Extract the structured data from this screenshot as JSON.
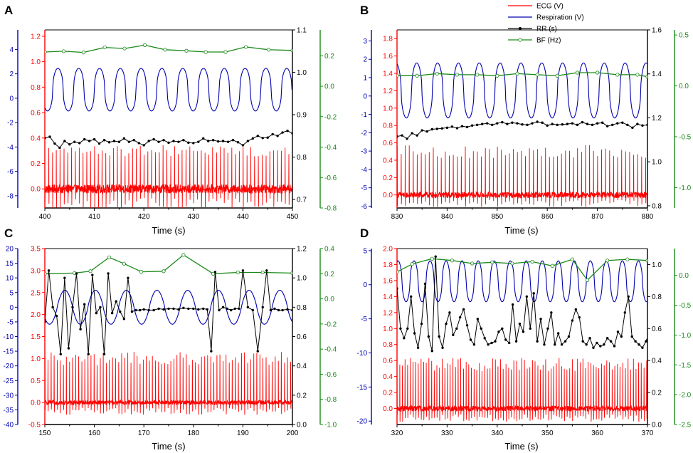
{
  "colors": {
    "ecg": "#ff0000",
    "respiration": "#0000b0",
    "rr": "#000000",
    "bf": "#1a8a1a",
    "axis_black": "#000000"
  },
  "legend": {
    "entries": [
      {
        "label": "ECG (V)",
        "series": "ecg"
      },
      {
        "label": "Respiration (V)",
        "series": "respiration"
      },
      {
        "label": "RR (s)",
        "series": "rr"
      },
      {
        "label": "BF (Hz)",
        "series": "bf"
      }
    ]
  },
  "chart_data": [
    {
      "panel": "A",
      "type": "line",
      "xlabel": "Time (s)",
      "x_range": [
        400,
        450
      ],
      "x_ticks": [
        400,
        410,
        420,
        430,
        440,
        450
      ],
      "axes": {
        "respiration": {
          "range": [
            -9,
            5.6
          ],
          "ticks": [
            -8,
            -6,
            -4,
            -2,
            0,
            2,
            4
          ]
        },
        "ecg": {
          "range": [
            -0.15,
            1.25
          ],
          "ticks": [
            "0.0",
            "0.2",
            "0.4",
            "0.6",
            "0.8",
            "1.0",
            "1.2"
          ]
        },
        "rr": {
          "range": [
            0.68,
            1.1
          ],
          "ticks": [
            "0.7",
            "0.8",
            "0.9",
            "1.0",
            "1.1"
          ]
        },
        "bf": {
          "range": [
            -0.8,
            0.37
          ],
          "ticks": [
            "-0.8",
            "-0.6",
            "-0.4",
            "-0.2",
            "0.0",
            "0.2"
          ]
        }
      },
      "respiration": {
        "period": 4.2,
        "phase": 401.6,
        "center": 0.7,
        "amp": 1.75,
        "sharp": 2.2
      },
      "ecg": {
        "period": 0.77,
        "peak_level": 0.3,
        "base": 0.0,
        "noise": 0.07,
        "s_depth": -0.12
      },
      "rr": {
        "x": [
          400,
          401,
          402,
          403,
          404,
          405,
          406,
          407,
          408,
          409,
          410,
          411,
          412,
          413,
          414,
          415,
          416,
          417,
          418,
          419,
          420,
          421,
          422,
          423,
          424,
          425,
          426,
          427,
          428,
          429,
          430,
          431,
          432,
          433,
          434,
          435,
          436,
          437,
          438,
          439,
          440,
          441,
          442,
          443,
          444,
          445,
          446,
          447,
          448,
          449,
          450
        ],
        "y": [
          0.845,
          0.848,
          0.832,
          0.822,
          0.838,
          0.83,
          0.836,
          0.833,
          0.842,
          0.838,
          0.842,
          0.832,
          0.84,
          0.835,
          0.838,
          0.836,
          0.844,
          0.836,
          0.84,
          0.833,
          0.828,
          0.838,
          0.842,
          0.836,
          0.84,
          0.834,
          0.838,
          0.836,
          0.84,
          0.834,
          0.833,
          0.836,
          0.844,
          0.838,
          0.84,
          0.837,
          0.838,
          0.836,
          0.84,
          0.835,
          0.828,
          0.838,
          0.844,
          0.85,
          0.845,
          0.846,
          0.854,
          0.85,
          0.858,
          0.862,
          0.856
        ]
      },
      "bf": {
        "x": [
          400,
          403.8,
          407.8,
          412.1,
          416.1,
          420.2,
          424.3,
          428.6,
          432.5,
          436.5,
          440.6,
          445.2,
          450
        ],
        "y": [
          0.225,
          0.23,
          0.222,
          0.255,
          0.248,
          0.27,
          0.24,
          0.233,
          0.225,
          0.225,
          0.258,
          0.24,
          0.235
        ]
      }
    },
    {
      "panel": "B",
      "type": "line",
      "xlabel": "Time (s)",
      "x_range": [
        830,
        880
      ],
      "x_ticks": [
        830,
        840,
        850,
        860,
        870,
        880
      ],
      "axes": {
        "respiration": {
          "range": [
            -6.1,
            3.6
          ],
          "ticks": [
            -6,
            -5,
            -4,
            -3,
            -2,
            -1,
            0,
            1,
            2,
            3
          ]
        },
        "ecg": {
          "range": [
            -0.15,
            1.9
          ],
          "ticks": [
            "0.0",
            "0.2",
            "0.4",
            "0.6",
            "0.8",
            "1.0",
            "1.2",
            "1.4",
            "1.6",
            "1.8"
          ]
        },
        "rr": {
          "range": [
            0.79,
            1.6
          ],
          "ticks": [
            "0.8",
            "1.0",
            "1.2",
            "1.4",
            "1.6"
          ]
        },
        "bf": {
          "range": [
            -1.2,
            0.55
          ],
          "ticks": [
            "-1.0",
            "-0.5",
            "0.0",
            "0.5"
          ]
        }
      },
      "respiration": {
        "period": 4.16,
        "phase": 832.9,
        "center": 0.3,
        "amp": 1.5,
        "sharp": 2.0
      },
      "ecg": {
        "period": 0.8,
        "peak_level": 0.5,
        "base": 0.0,
        "noise": 0.07,
        "s_depth": -0.1
      },
      "rr": {
        "x": [
          830,
          831,
          832,
          833,
          834,
          835,
          836,
          837,
          838,
          839,
          840,
          841,
          842,
          843,
          844,
          845,
          846,
          847,
          848,
          849,
          850,
          851,
          852,
          853,
          854,
          855,
          856,
          857,
          858,
          859,
          860,
          861,
          862,
          863,
          864,
          865,
          866,
          867,
          868,
          869,
          870,
          871,
          872,
          873,
          874,
          875,
          876,
          877,
          878,
          879,
          880
        ],
        "y": [
          1.115,
          1.12,
          1.105,
          1.13,
          1.12,
          1.143,
          1.138,
          1.148,
          1.15,
          1.152,
          1.155,
          1.16,
          1.153,
          1.162,
          1.158,
          1.165,
          1.168,
          1.172,
          1.175,
          1.168,
          1.175,
          1.18,
          1.172,
          1.178,
          1.175,
          1.17,
          1.168,
          1.175,
          1.182,
          1.178,
          1.165,
          1.172,
          1.168,
          1.17,
          1.172,
          1.175,
          1.168,
          1.18,
          1.172,
          1.168,
          1.175,
          1.178,
          1.162,
          1.168,
          1.175,
          1.178,
          1.168,
          1.155,
          1.172,
          1.165,
          1.168
        ]
      },
      "bf": {
        "x": [
          830,
          834,
          838,
          842,
          846,
          850,
          854,
          858,
          862,
          866,
          870,
          874,
          878,
          880
        ],
        "y": [
          0.1,
          0.1,
          0.12,
          0.11,
          0.11,
          0.1,
          0.12,
          0.11,
          0.1,
          0.13,
          0.13,
          0.11,
          0.11,
          0.09
        ]
      }
    },
    {
      "panel": "C",
      "type": "line",
      "xlabel": "Time (s)",
      "x_range": [
        150,
        200
      ],
      "x_ticks": [
        150,
        160,
        170,
        180,
        190,
        200
      ],
      "axes": {
        "respiration": {
          "range": [
            -40,
            20
          ],
          "ticks": [
            -40,
            -35,
            -30,
            -25,
            -20,
            -15,
            -10,
            -5,
            0,
            5,
            10,
            15,
            20
          ]
        },
        "ecg": {
          "range": [
            -0.5,
            3.5
          ],
          "ticks": [
            "-0.5",
            "0.0",
            "0.5",
            "1.0",
            "1.5",
            "2.0",
            "2.5",
            "3.0",
            "3.5"
          ]
        },
        "rr": {
          "range": [
            0.0,
            1.2
          ],
          "ticks": [
            "0.0",
            "0.2",
            "0.4",
            "0.6",
            "0.8",
            "1.0",
            "1.2"
          ]
        },
        "bf": {
          "range": [
            -1.0,
            0.4
          ],
          "ticks": [
            "-1.0",
            "-0.8",
            "-0.6",
            "-0.4",
            "-0.2",
            "0.0",
            "0.2",
            "0.4"
          ]
        }
      },
      "respiration": {
        "period": 6.2,
        "phase": 152.5,
        "center": 0.0,
        "amp": 5.8,
        "sharp": 1.2
      },
      "ecg": {
        "period": 0.62,
        "peak_level": 1.0,
        "base": 0.0,
        "noise": 0.1,
        "s_depth": -0.2
      },
      "rr": {
        "x": [
          150,
          150.8,
          151.6,
          152.4,
          153.2,
          154,
          154.8,
          155.6,
          156.4,
          157.2,
          158,
          158.8,
          159.6,
          160.4,
          161.2,
          162,
          162.8,
          163.6,
          164.4,
          165.2,
          166,
          166.8,
          167.6,
          168.4,
          169.2,
          170,
          171,
          172,
          173,
          174,
          175,
          176,
          177,
          178,
          179,
          180,
          181,
          182,
          182.8,
          183.6,
          184.4,
          185.2,
          186,
          186.8,
          187.6,
          188.4,
          189.2,
          190,
          191,
          192,
          193,
          194,
          194.8,
          195.6,
          196.4,
          197.2,
          198,
          199,
          200
        ],
        "y": [
          0.7,
          1.05,
          0.8,
          0.74,
          0.48,
          1.0,
          0.52,
          0.8,
          1.03,
          0.65,
          0.82,
          0.48,
          1.02,
          0.76,
          0.8,
          0.48,
          1.03,
          0.76,
          0.84,
          0.77,
          0.72,
          1.0,
          0.77,
          0.78,
          0.78,
          0.785,
          0.78,
          0.78,
          0.79,
          0.785,
          0.79,
          0.79,
          0.785,
          0.795,
          0.79,
          0.79,
          0.785,
          0.79,
          0.785,
          0.5,
          1.04,
          0.78,
          0.8,
          0.79,
          0.78,
          0.79,
          0.79,
          1.05,
          0.8,
          0.78,
          0.5,
          0.8,
          1.05,
          0.78,
          0.79,
          0.78,
          0.78,
          0.785,
          0.78
        ]
      },
      "bf": {
        "x": [
          150,
          156,
          159.2,
          163,
          166,
          169.5,
          174,
          178,
          184,
          189,
          194,
          200
        ],
        "y": [
          0.2,
          0.205,
          0.22,
          0.33,
          0.28,
          0.215,
          0.22,
          0.35,
          0.2,
          0.21,
          0.21,
          0.205
        ]
      }
    },
    {
      "panel": "D",
      "type": "line",
      "xlabel": "Time (s)",
      "x_range": [
        320,
        370
      ],
      "x_ticks": [
        320,
        330,
        340,
        350,
        360,
        370
      ],
      "axes": {
        "respiration": {
          "range": [
            -20.5,
            5.3
          ],
          "ticks": [
            -20,
            -15,
            -10,
            -5,
            0,
            5
          ]
        },
        "ecg": {
          "range": [
            -0.2,
            2.0
          ],
          "ticks": [
            "0.0",
            "0.2",
            "0.4",
            "0.6",
            "0.8",
            "1.0",
            "1.2",
            "1.4",
            "1.6",
            "1.8",
            "2.0"
          ]
        },
        "rr": {
          "range": [
            0.0,
            1.1
          ],
          "ticks": [
            "0.0",
            "0.2",
            "0.4",
            "0.6",
            "0.8",
            "1.0"
          ]
        },
        "bf": {
          "range": [
            -2.5,
            0.45
          ],
          "ticks": [
            "-2.5",
            "-2.0",
            "-1.5",
            "-1.0",
            "-0.5",
            "0.0"
          ]
        }
      },
      "respiration": {
        "period": 3.2,
        "phase": 322.6,
        "center": 0.5,
        "amp": 3.0,
        "sharp": 1.8
      },
      "ecg": {
        "period": 0.53,
        "peak_level": 0.55,
        "base": 0.0,
        "noise": 0.07,
        "s_depth": -0.12
      },
      "rr": {
        "x": [
          320,
          320.7,
          321.4,
          322.1,
          322.8,
          323.5,
          324.2,
          324.9,
          325.6,
          326.3,
          327,
          327.7,
          328.4,
          329.1,
          329.8,
          330.5,
          331.2,
          331.9,
          332.6,
          333.3,
          334,
          334.7,
          335.4,
          336.1,
          336.8,
          337.5,
          338.2,
          338.9,
          339.6,
          340.3,
          341,
          341.7,
          342.4,
          343.1,
          343.8,
          344.5,
          345.2,
          345.9,
          346.6,
          347.3,
          348,
          348.7,
          349.4,
          350.1,
          350.8,
          351.5,
          352.2,
          352.9,
          353.6,
          354.3,
          355,
          355.7,
          356.4,
          357.1,
          357.8,
          358.5,
          359.2,
          359.9,
          360.6,
          361.3,
          362,
          362.7,
          363.4,
          364.1,
          364.8,
          365.5,
          366.2,
          366.9,
          367.6,
          368.3,
          369,
          369.7,
          370
        ],
        "y": [
          0.85,
          0.6,
          0.54,
          0.6,
          0.8,
          0.57,
          0.48,
          0.63,
          0.88,
          0.55,
          0.46,
          1.05,
          0.55,
          0.48,
          0.63,
          0.7,
          0.56,
          0.6,
          0.67,
          0.72,
          0.62,
          0.53,
          0.5,
          0.66,
          0.6,
          0.54,
          0.5,
          0.51,
          0.52,
          0.58,
          0.6,
          0.53,
          0.51,
          0.75,
          0.52,
          0.63,
          0.58,
          0.8,
          0.6,
          0.82,
          0.52,
          0.66,
          0.5,
          0.6,
          0.7,
          0.5,
          0.57,
          0.5,
          0.52,
          0.55,
          0.65,
          0.72,
          0.67,
          0.52,
          0.5,
          0.54,
          0.48,
          0.51,
          0.49,
          0.5,
          0.54,
          0.52,
          0.49,
          0.58,
          0.55,
          0.7,
          0.8,
          0.55,
          0.52,
          0.5,
          0.48,
          0.52,
          0.53
        ]
      },
      "bf": {
        "x": [
          320,
          323,
          327,
          331,
          335,
          339,
          343,
          347,
          351,
          355,
          358,
          362,
          366,
          370
        ],
        "y": [
          0.06,
          0.19,
          0.28,
          0.25,
          0.2,
          0.22,
          0.2,
          0.23,
          0.16,
          0.27,
          -0.08,
          0.25,
          0.27,
          0.25
        ]
      }
    }
  ]
}
